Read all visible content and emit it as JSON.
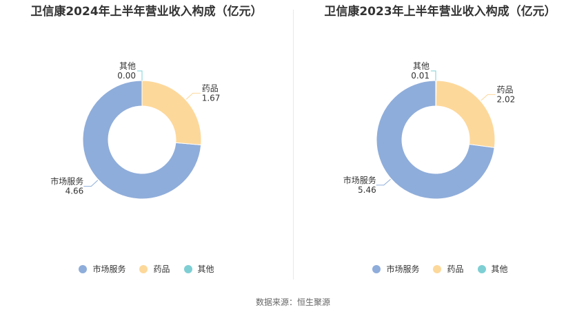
{
  "chart_data": [
    {
      "type": "pie",
      "variant": "donut",
      "title": "卫信康2024年上半年营业收入构成（亿元）",
      "categories": [
        "市场服务",
        "药品",
        "其他"
      ],
      "values": [
        4.66,
        1.67,
        0.0
      ],
      "value_labels": [
        "4.66",
        "1.67",
        "0.00"
      ],
      "colors": [
        "#8fadda",
        "#fdd89b",
        "#7ecfd4"
      ],
      "legend_position": "bottom"
    },
    {
      "type": "pie",
      "variant": "donut",
      "title": "卫信康2023年上半年营业收入构成（亿元）",
      "categories": [
        "市场服务",
        "药品",
        "其他"
      ],
      "values": [
        5.46,
        2.02,
        0.01
      ],
      "value_labels": [
        "5.46",
        "2.02",
        "0.01"
      ],
      "colors": [
        "#8fadda",
        "#fdd89b",
        "#7ecfd4"
      ],
      "legend_position": "bottom"
    }
  ],
  "source": "数据来源：恒生聚源"
}
